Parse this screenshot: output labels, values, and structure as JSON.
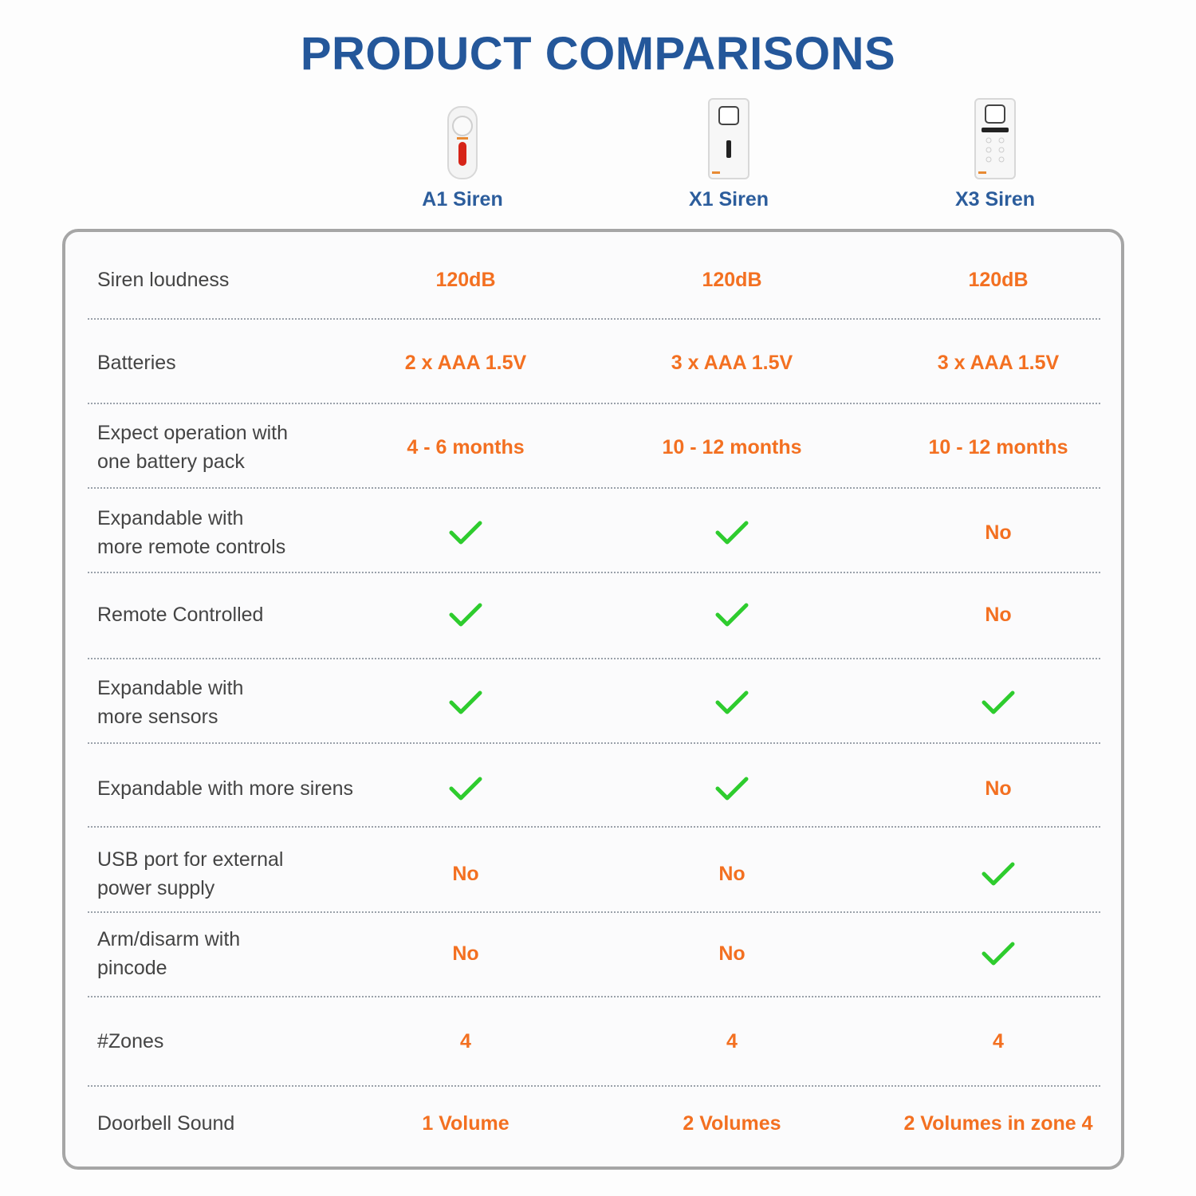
{
  "title": "PRODUCT COMPARISONS",
  "colors": {
    "title": "#24579a",
    "value": "#f37021",
    "check": "#2ecc2e",
    "label": "#444444"
  },
  "products": [
    {
      "name": "A1 Siren",
      "image": "a1-siren-device"
    },
    {
      "name": "X1 Siren",
      "image": "x1-siren-device"
    },
    {
      "name": "X3 Siren",
      "image": "x3-siren-device"
    }
  ],
  "rows": [
    {
      "label": "Siren loudness",
      "values": [
        "120dB",
        "120dB",
        "120dB"
      ]
    },
    {
      "label": "Batteries",
      "values": [
        "2 x AAA 1.5V",
        "3 x AAA 1.5V",
        "3 x AAA 1.5V"
      ]
    },
    {
      "label": "Expect operation with\none battery pack",
      "values": [
        "4 - 6 months",
        "10 - 12 months",
        "10 - 12 months"
      ]
    },
    {
      "label": "Expandable with\nmore remote controls",
      "values": [
        "check",
        "check",
        "No"
      ]
    },
    {
      "label": "Remote Controlled",
      "values": [
        "check",
        "check",
        "No"
      ]
    },
    {
      "label": "Expandable with\nmore sensors",
      "values": [
        "check",
        "check",
        "check"
      ]
    },
    {
      "label": "Expandable with more sirens",
      "values": [
        "check",
        "check",
        "No"
      ]
    },
    {
      "label": "USB port for external\npower supply",
      "values": [
        "No",
        "No",
        "check"
      ]
    },
    {
      "label": "Arm/disarm with\npincode",
      "values": [
        "No",
        "No",
        "check"
      ]
    },
    {
      "label": "#Zones",
      "values": [
        "4",
        "4",
        "4"
      ]
    },
    {
      "label": "Doorbell Sound",
      "values": [
        "1 Volume",
        "2 Volumes",
        "2 Volumes in zone 4"
      ]
    }
  ]
}
